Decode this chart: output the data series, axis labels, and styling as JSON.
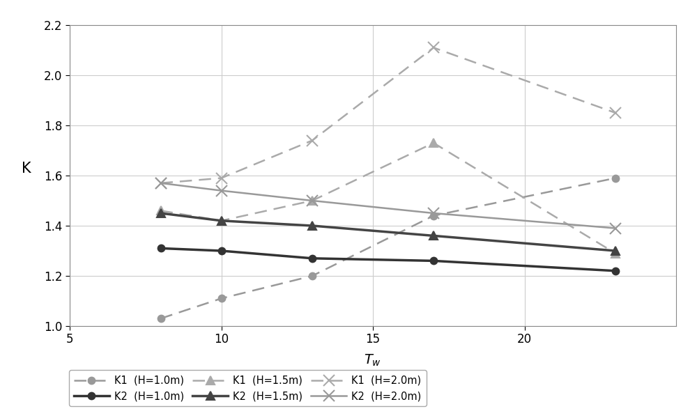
{
  "title": "",
  "xlabel": "T_w",
  "ylabel": "K",
  "xlim": [
    5,
    25
  ],
  "ylim": [
    1.0,
    2.2
  ],
  "xticks": [
    5,
    10,
    15,
    20
  ],
  "yticks": [
    1.0,
    1.2,
    1.4,
    1.6,
    1.8,
    2.0,
    2.2
  ],
  "series": [
    {
      "label": "K1  (H=1.0m)",
      "x": [
        8,
        10,
        13,
        17,
        23
      ],
      "y": [
        1.03,
        1.11,
        1.2,
        1.44,
        1.59
      ],
      "color": "#999999",
      "linestyle": "--",
      "marker": "o",
      "markersize": 7,
      "linewidth": 1.8,
      "dashes": [
        7,
        4
      ],
      "markerfacecolor": "#999999",
      "zorder": 3
    },
    {
      "label": "K2  (H=1.0m)",
      "x": [
        8,
        10,
        13,
        17,
        23
      ],
      "y": [
        1.31,
        1.3,
        1.27,
        1.26,
        1.22
      ],
      "color": "#333333",
      "linestyle": "-",
      "marker": "o",
      "markersize": 7,
      "linewidth": 2.5,
      "dashes": null,
      "markerfacecolor": "#333333",
      "zorder": 4
    },
    {
      "label": "K1  (H=1.5m)",
      "x": [
        8,
        10,
        13,
        17,
        23
      ],
      "y": [
        1.46,
        1.42,
        1.5,
        1.73,
        1.29
      ],
      "color": "#aaaaaa",
      "linestyle": "--",
      "marker": "^",
      "markersize": 9,
      "linewidth": 1.8,
      "dashes": [
        7,
        4
      ],
      "markerfacecolor": "#aaaaaa",
      "zorder": 3
    },
    {
      "label": "K2  (H=1.5m)",
      "x": [
        8,
        10,
        13,
        17,
        23
      ],
      "y": [
        1.45,
        1.42,
        1.4,
        1.36,
        1.3
      ],
      "color": "#444444",
      "linestyle": "-",
      "marker": "^",
      "markersize": 9,
      "linewidth": 2.5,
      "dashes": null,
      "markerfacecolor": "#444444",
      "zorder": 4
    },
    {
      "label": "K1  (H=2.0m)",
      "x": [
        8,
        10,
        13,
        17,
        23
      ],
      "y": [
        1.57,
        1.59,
        1.74,
        2.11,
        1.85
      ],
      "color": "#aaaaaa",
      "linestyle": "--",
      "marker": "x",
      "markersize": 11,
      "linewidth": 1.8,
      "dashes": [
        7,
        4
      ],
      "markerfacecolor": "#aaaaaa",
      "zorder": 3
    },
    {
      "label": "K2  (H=2.0m)",
      "x": [
        8,
        10,
        13,
        17,
        23
      ],
      "y": [
        1.57,
        1.54,
        1.5,
        1.45,
        1.39
      ],
      "color": "#999999",
      "linestyle": "-",
      "marker": "x",
      "markersize": 11,
      "linewidth": 1.8,
      "dashes": null,
      "markerfacecolor": "#999999",
      "zorder": 3
    }
  ],
  "legend_ncol": 3,
  "background_color": "#ffffff",
  "grid_color": "#cccccc"
}
